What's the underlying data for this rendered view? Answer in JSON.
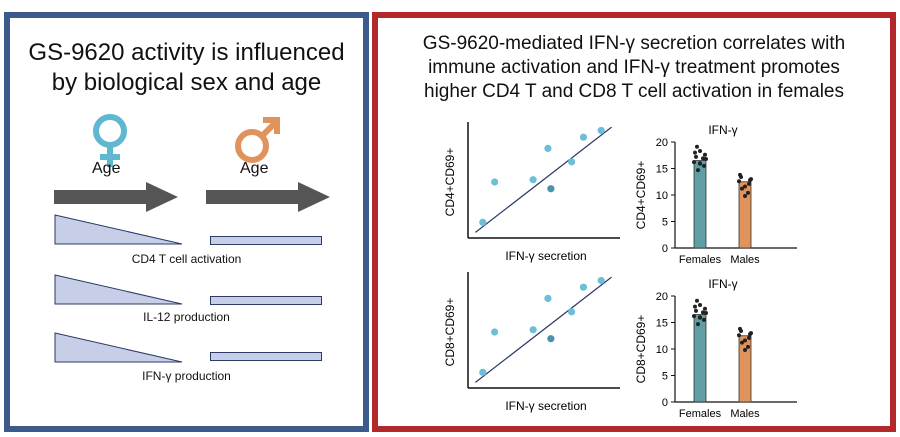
{
  "left_panel": {
    "title_line1": "GS-9620 activity is influenced",
    "title_line2": "by biological sex and age",
    "female_age_label": "Age",
    "male_age_label": "Age",
    "rows": [
      {
        "label": "CD4 T cell activation"
      },
      {
        "label": "IL-12 production"
      },
      {
        "label": "IFN-γ production"
      }
    ],
    "colors": {
      "border": "#3c5a8c",
      "female": "#5fb8d0",
      "male": "#e0935a",
      "arrow": "#555555",
      "bar_fill": "#c7cfe8",
      "bar_stroke": "#2b3a66"
    }
  },
  "right_panel": {
    "title_line1": "GS-9620-mediated IFN-γ secretion correlates with",
    "title_line2": "immune activation and IFN-γ treatment promotes",
    "title_line3": "higher CD4 T and CD8 T cell activation in females",
    "colors": {
      "border": "#b3282a"
    }
  },
  "chart_data": [
    {
      "type": "scatter",
      "title": "",
      "xlabel": "IFN-γ secretion",
      "ylabel": "CD4+CD69+",
      "points": [
        [
          0.1,
          0.14
        ],
        [
          0.18,
          0.5
        ],
        [
          0.44,
          0.52
        ],
        [
          0.56,
          0.44
        ],
        [
          0.54,
          0.8
        ],
        [
          0.7,
          0.68
        ],
        [
          0.78,
          0.9
        ],
        [
          0.9,
          0.96
        ]
      ],
      "point_shades": [
        0,
        0,
        0,
        1,
        0,
        0,
        0,
        0
      ],
      "trendline": [
        [
          0.05,
          0.05
        ],
        [
          0.97,
          0.99
        ]
      ],
      "xlim": [
        0,
        1
      ],
      "ylim": [
        0,
        1
      ]
    },
    {
      "type": "bar",
      "title": "IFN-γ",
      "ylabel": "CD4+CD69+",
      "categories": [
        "Females",
        "Males"
      ],
      "values": [
        16.5,
        12.5
      ],
      "ylim": [
        0,
        20
      ],
      "yticks": [
        0,
        5,
        10,
        15,
        20
      ],
      "colors": [
        "#5f9ea4",
        "#e0935a"
      ],
      "points": [
        [
          17.2,
          15.5,
          16.0,
          18.0,
          17.6,
          15.9,
          19.1,
          16.9,
          16.2,
          16.8,
          18.3,
          14.7
        ],
        [
          13.4,
          12.1,
          11.6,
          13.8,
          12.8,
          9.8,
          11.2,
          10.4,
          12.6,
          13.0
        ]
      ]
    },
    {
      "type": "scatter",
      "title": "",
      "xlabel": "IFN-γ secretion",
      "ylabel": "CD8+CD69+",
      "points": [
        [
          0.1,
          0.14
        ],
        [
          0.18,
          0.5
        ],
        [
          0.44,
          0.52
        ],
        [
          0.56,
          0.44
        ],
        [
          0.54,
          0.8
        ],
        [
          0.7,
          0.68
        ],
        [
          0.78,
          0.9
        ],
        [
          0.9,
          0.96
        ]
      ],
      "point_shades": [
        0,
        0,
        0,
        1,
        0,
        0,
        0,
        0
      ],
      "trendline": [
        [
          0.05,
          0.05
        ],
        [
          0.97,
          0.99
        ]
      ],
      "xlim": [
        0,
        1
      ],
      "ylim": [
        0,
        1
      ]
    },
    {
      "type": "bar",
      "title": "IFN-γ",
      "ylabel": "CD8+CD69+",
      "categories": [
        "Females",
        "Males"
      ],
      "values": [
        16.5,
        12.5
      ],
      "ylim": [
        0,
        20
      ],
      "yticks": [
        0,
        5,
        10,
        15,
        20
      ],
      "colors": [
        "#5f9ea4",
        "#e0935a"
      ],
      "points": [
        [
          17.2,
          15.5,
          16.0,
          18.0,
          17.6,
          15.9,
          19.1,
          16.9,
          16.2,
          16.8,
          18.3,
          14.7
        ],
        [
          13.4,
          12.1,
          11.6,
          13.8,
          12.8,
          9.8,
          11.2,
          10.4,
          12.6,
          13.0
        ]
      ]
    }
  ]
}
